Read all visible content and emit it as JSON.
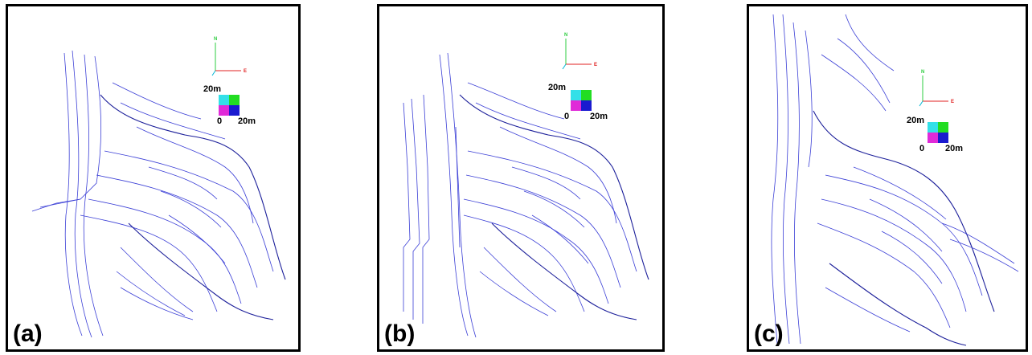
{
  "panels": [
    {
      "id": "a",
      "label": "(a)",
      "axis": {
        "north": "N",
        "east": "E"
      },
      "scale": {
        "top": "20m",
        "origin": "0",
        "right": "20m"
      }
    },
    {
      "id": "b",
      "label": "(b)",
      "axis": {
        "north": "N",
        "east": "E"
      },
      "scale": {
        "top": "20m",
        "origin": "0",
        "right": "20m"
      }
    },
    {
      "id": "c",
      "label": "(c)",
      "axis": {
        "north": "N",
        "east": "E"
      },
      "scale": {
        "top": "20m",
        "origin": "0",
        "right": "20m"
      }
    }
  ],
  "colors": {
    "contour": "#3b3fd6",
    "contour_dark": "#1c1f9a",
    "axis_north": "#2ecc40",
    "axis_east": "#e02020",
    "axis_up": "#00b7d6",
    "scale_cyan": "#33e0e8",
    "scale_green": "#22dd22",
    "scale_magenta": "#e02ad8",
    "scale_blue": "#1a1ad0"
  }
}
